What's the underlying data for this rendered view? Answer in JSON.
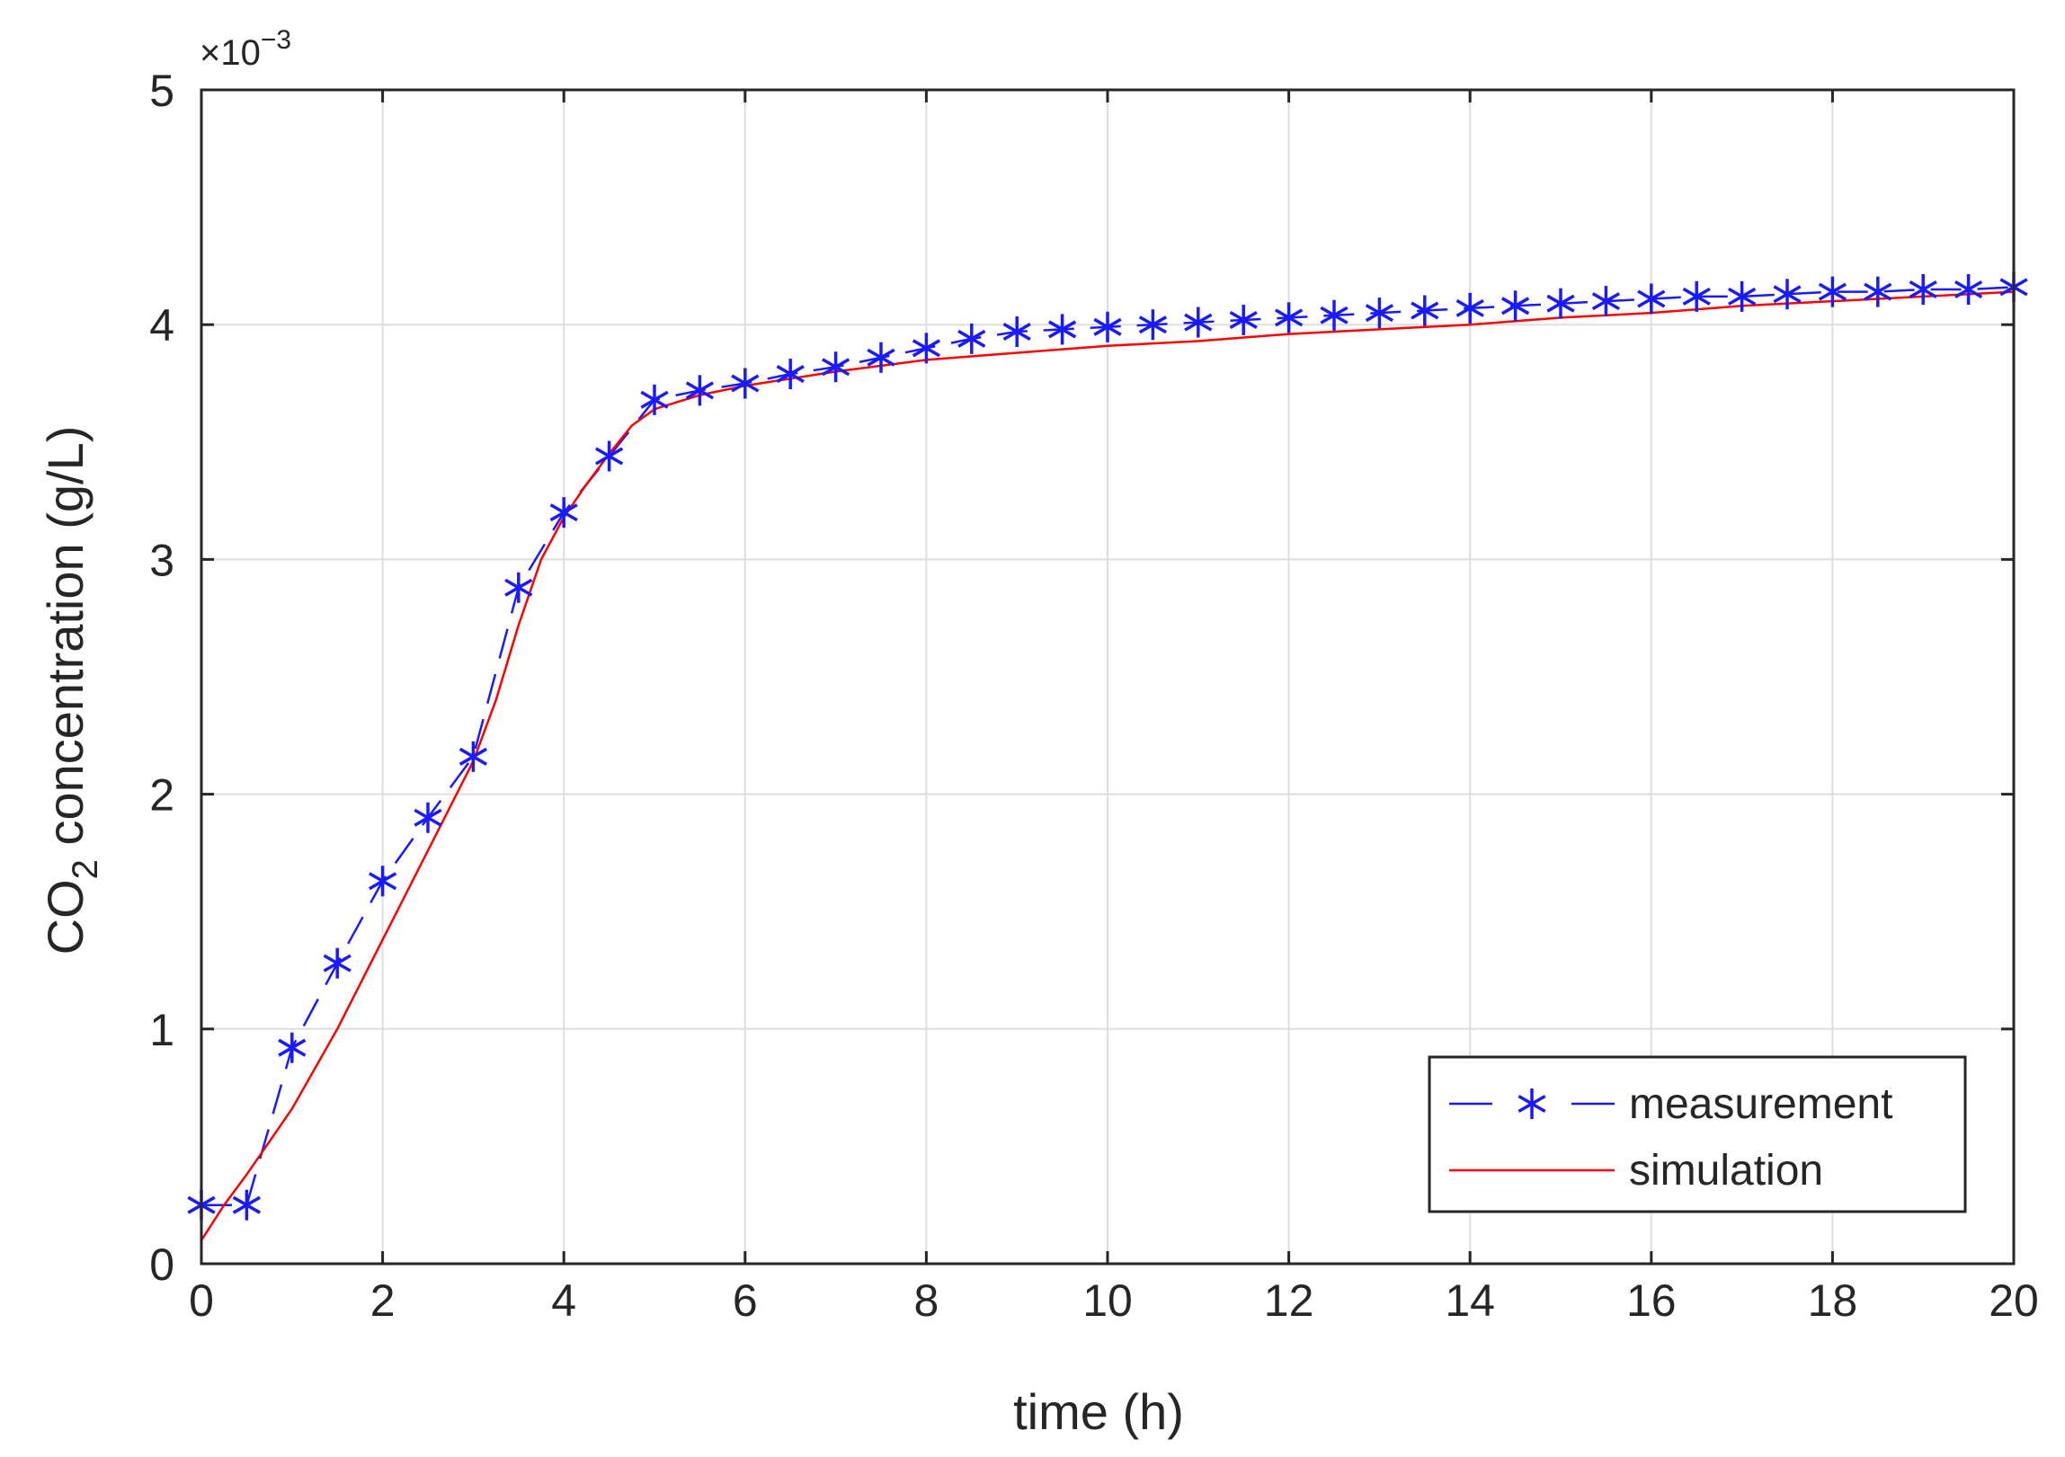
{
  "chart_data": {
    "type": "line",
    "title": "",
    "xlabel": "time (h)",
    "ylabel_main": "CO",
    "ylabel_subscript": "2",
    "ylabel_rest": " concentration (g/L)",
    "xlim": [
      0,
      20
    ],
    "ylim": [
      0,
      5
    ],
    "x_ticks": [
      0,
      2,
      4,
      6,
      8,
      10,
      12,
      14,
      16,
      18,
      20
    ],
    "y_ticks": [
      0,
      1,
      2,
      3,
      4,
      5
    ],
    "y_scale_base": "×10",
    "y_scale_exponent": "−3",
    "grid": true,
    "legend_position": "bottom-right",
    "series": [
      {
        "name": "measurement",
        "style": "dashed-with-asterisk-markers",
        "color": "#1a1aff",
        "x": [
          0,
          0.5,
          1,
          1.5,
          2,
          2.5,
          3,
          3.5,
          4,
          4.5,
          5,
          5.5,
          6,
          6.5,
          7,
          7.5,
          8,
          8.5,
          9,
          9.5,
          10,
          10.5,
          11,
          11.5,
          12,
          12.5,
          13,
          13.5,
          14,
          14.5,
          15,
          15.5,
          16,
          16.5,
          17,
          17.5,
          18,
          18.5,
          19,
          19.5,
          20
        ],
        "y": [
          0.25,
          0.25,
          0.92,
          1.28,
          1.63,
          1.9,
          2.16,
          2.88,
          3.2,
          3.44,
          3.68,
          3.72,
          3.75,
          3.79,
          3.82,
          3.86,
          3.9,
          3.94,
          3.97,
          3.98,
          3.99,
          4.0,
          4.01,
          4.02,
          4.03,
          4.04,
          4.05,
          4.06,
          4.07,
          4.08,
          4.09,
          4.1,
          4.11,
          4.12,
          4.12,
          4.13,
          4.14,
          4.14,
          4.15,
          4.15,
          4.16
        ]
      },
      {
        "name": "simulation",
        "style": "solid",
        "color": "#ff0000",
        "x": [
          0,
          0.25,
          0.5,
          0.75,
          1,
          1.5,
          2,
          2.5,
          3,
          3.25,
          3.5,
          3.75,
          4,
          4.25,
          4.5,
          4.75,
          5,
          5.5,
          6,
          6.5,
          7,
          8,
          9,
          10,
          11,
          12,
          13,
          14,
          15,
          16,
          17,
          18,
          19,
          20
        ],
        "y": [
          0.1,
          0.25,
          0.38,
          0.52,
          0.66,
          1.0,
          1.38,
          1.76,
          2.14,
          2.4,
          2.72,
          3.0,
          3.18,
          3.32,
          3.45,
          3.57,
          3.64,
          3.7,
          3.74,
          3.77,
          3.8,
          3.85,
          3.88,
          3.91,
          3.93,
          3.96,
          3.98,
          4.0,
          4.03,
          4.05,
          4.08,
          4.1,
          4.12,
          4.14
        ]
      }
    ]
  }
}
